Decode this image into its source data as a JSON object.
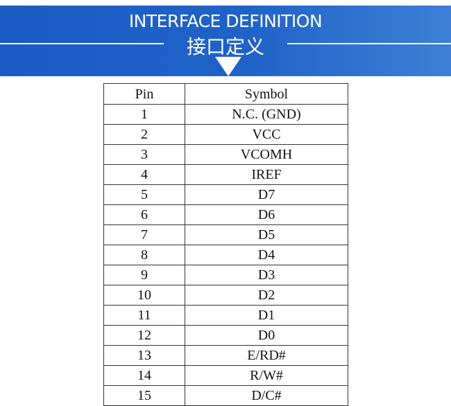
{
  "banner": {
    "title_en": "INTERFACE DEFINITION",
    "title_zh": "接口定义",
    "color": "#1f63c9"
  },
  "table": {
    "headers": [
      "Pin",
      "Symbol"
    ],
    "rows": [
      [
        "1",
        "N.C. (GND)"
      ],
      [
        "2",
        "VCC"
      ],
      [
        "3",
        "VCOMH"
      ],
      [
        "4",
        "IREF"
      ],
      [
        "5",
        "D7"
      ],
      [
        "6",
        "D6"
      ],
      [
        "7",
        "D5"
      ],
      [
        "8",
        "D4"
      ],
      [
        "9",
        "D3"
      ],
      [
        "10",
        "D2"
      ],
      [
        "11",
        "D1"
      ],
      [
        "12",
        "D0"
      ],
      [
        "13",
        "E/RD#"
      ],
      [
        "14",
        "R/W#"
      ],
      [
        "15",
        "D/C#"
      ]
    ]
  }
}
